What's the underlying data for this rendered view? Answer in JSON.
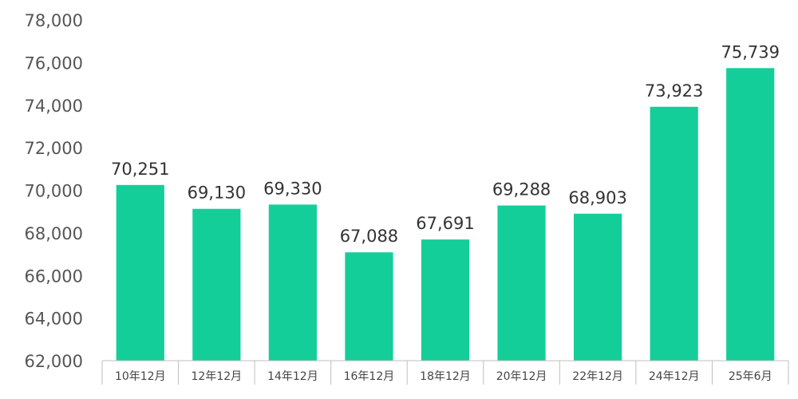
{
  "chart_data": {
    "type": "bar",
    "categories": [
      "10年12月",
      "12年12月",
      "14年12月",
      "16年12月",
      "18年12月",
      "20年12月",
      "22年12月",
      "24年12月",
      "25年6月"
    ],
    "values": [
      70251,
      69130,
      69330,
      67088,
      67691,
      69288,
      68903,
      73923,
      75739
    ],
    "data_labels": [
      "70,251",
      "69,130",
      "69,330",
      "67,088",
      "67,691",
      "69,288",
      "68,903",
      "73,923",
      "75,739"
    ],
    "ylim": [
      62000,
      78000
    ],
    "yticks": [
      62000,
      64000,
      66000,
      68000,
      70000,
      72000,
      74000,
      76000,
      78000
    ],
    "ytick_labels": [
      "62,000",
      "64,000",
      "66,000",
      "68,000",
      "70,000",
      "72,000",
      "74,000",
      "76,000",
      "78,000"
    ],
    "title": "",
    "xlabel": "",
    "ylabel": "",
    "grid": false,
    "legend": "none",
    "bar_color": "#14CE9A",
    "axis_color": "#BFBFBF"
  }
}
